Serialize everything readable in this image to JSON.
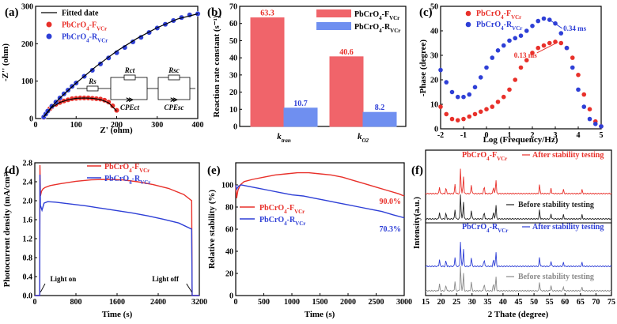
{
  "chart_data": [
    {
      "panel": "(a)",
      "type": "scatter",
      "xlabel": "Z' (ohm)",
      "ylabel": "-Z'' (ohm)",
      "xlim": [
        0,
        400
      ],
      "ylim": [
        0,
        300
      ],
      "xticks": [
        0,
        100,
        200,
        300,
        400
      ],
      "yticks": [
        0,
        100,
        200,
        300
      ],
      "legend": [
        {
          "label": "Fitted date",
          "color": "#000000",
          "marker": "line"
        },
        {
          "label": "PbCrO₄-Fᵥ꜀ᵣ",
          "sub_base": "PbCrO",
          "sub_num": "4",
          "sub_tail": "-F",
          "sub_vcr": "VCr",
          "color": "#e8302a",
          "marker": "circle"
        },
        {
          "label": "PbCrO₄-Rᵥ꜀ᵣ",
          "sub_base": "PbCrO",
          "sub_num": "4",
          "sub_tail": "-R",
          "sub_vcr": "VCr",
          "color": "#2e3fd6",
          "marker": "circle"
        }
      ],
      "circuit": {
        "rs": "Rs",
        "rct": "Rct",
        "rsc": "Rsc",
        "cpe1": "CPEct",
        "cpe2": "CPEsc"
      },
      "series": [
        {
          "name": "PbCrO4-FVCr",
          "color": "#e8302a",
          "x": [
            20,
            25,
            30,
            35,
            40,
            50,
            60,
            70,
            80,
            90,
            100,
            110,
            120,
            130,
            140,
            150,
            160,
            170,
            180,
            190,
            200
          ],
          "y": [
            3,
            12,
            20,
            26,
            31,
            38,
            43,
            47,
            50,
            53,
            54,
            55,
            55,
            55,
            54,
            53,
            52,
            49,
            44,
            34,
            22
          ]
        },
        {
          "name": "PbCrO4-RVCr",
          "color": "#2e3fd6",
          "x": [
            20,
            25,
            30,
            40,
            50,
            60,
            70,
            80,
            90,
            100,
            120,
            140,
            160,
            180,
            200,
            220,
            240,
            260,
            280,
            300,
            320,
            340,
            360,
            380,
            400
          ],
          "y": [
            4,
            12,
            20,
            33,
            44,
            55,
            66,
            76,
            86,
            95,
            113,
            129,
            146,
            162,
            176,
            190,
            205,
            217,
            230,
            242,
            252,
            262,
            270,
            277,
            280
          ]
        },
        {
          "name": "Fitted date",
          "color": "#000000",
          "x": [
            20,
            40,
            60,
            80,
            100,
            150,
            200,
            250,
            300,
            350,
            400
          ],
          "y": [
            5,
            32,
            55,
            75,
            95,
            140,
            180,
            214,
            243,
            266,
            280
          ]
        },
        {
          "name": "Fitted F",
          "color": "#000000",
          "x": [
            20,
            40,
            60,
            80,
            100,
            120,
            140,
            160,
            180,
            200
          ],
          "y": [
            4,
            30,
            43,
            50,
            54,
            55,
            54,
            51,
            42,
            20
          ]
        }
      ]
    },
    {
      "panel": "(b)",
      "type": "bar",
      "ylabel": "Reaction rate constant (s⁻¹)",
      "ylim": [
        0,
        70
      ],
      "yticks": [
        0,
        10,
        20,
        30,
        40,
        50,
        60,
        70
      ],
      "categories": [
        "k_tran",
        "k_O2"
      ],
      "cat_main": [
        "k",
        "k"
      ],
      "cat_sub": [
        "tran",
        "O2"
      ],
      "series": [
        {
          "name": "PbCrO4-FVCr",
          "color": "#f0646a",
          "values": [
            63.3,
            40.6
          ],
          "labels": [
            "63.3",
            "40.6"
          ],
          "label_color": "#e8302a"
        },
        {
          "name": "PbCrO4-RVCr",
          "color": "#6f8ff0",
          "values": [
            10.7,
            8.2
          ],
          "labels": [
            "10.7",
            "8.2"
          ],
          "label_color": "#2e3fd6"
        }
      ]
    },
    {
      "panel": "(c)",
      "type": "scatter",
      "xlabel": "Log (Frequency/Hz)",
      "ylabel": "-Phase (degree)",
      "xlim": [
        -2,
        5
      ],
      "ylim": [
        0,
        50
      ],
      "xticks": [
        -2,
        -1,
        0,
        1,
        2,
        3,
        4,
        5
      ],
      "yticks": [
        0,
        10,
        20,
        30,
        40,
        50
      ],
      "annotations": [
        {
          "text": "0.13 ms",
          "color": "#e8302a"
        },
        {
          "text": "0.34 ms",
          "color": "#2e3fd6"
        }
      ],
      "series": [
        {
          "name": "PbCrO4-FVCr",
          "color": "#e8302a",
          "x": [
            -2,
            -1.75,
            -1.5,
            -1.25,
            -1,
            -0.75,
            -0.5,
            -0.25,
            0,
            0.25,
            0.5,
            0.75,
            1,
            1.25,
            1.5,
            1.75,
            2,
            2.25,
            2.5,
            2.75,
            3,
            3.25,
            3.5,
            3.75,
            4,
            4.25,
            4.5,
            4.75,
            5
          ],
          "y": [
            9,
            6,
            4,
            3.5,
            4,
            5,
            6,
            7,
            8,
            9,
            11,
            13,
            16,
            20,
            25,
            28,
            31,
            33,
            34,
            35,
            35.5,
            35,
            33,
            29,
            22,
            14,
            8,
            3,
            1
          ]
        },
        {
          "name": "PbCrO4-RVCr",
          "color": "#2e3fd6",
          "x": [
            -2,
            -1.75,
            -1.5,
            -1.25,
            -1,
            -0.75,
            -0.5,
            -0.25,
            0,
            0.25,
            0.5,
            0.75,
            1,
            1.25,
            1.5,
            1.75,
            2,
            2.25,
            2.5,
            2.75,
            3,
            3.25,
            3.5,
            3.75,
            4,
            4.25,
            4.5,
            4.75,
            5
          ],
          "y": [
            24,
            19,
            15,
            13,
            13,
            14,
            17,
            21,
            25,
            29,
            32,
            34,
            36,
            37,
            38,
            40,
            42,
            44,
            45,
            44.5,
            43,
            39,
            33,
            25,
            16,
            9,
            4,
            2,
            1
          ]
        }
      ]
    },
    {
      "panel": "(d)",
      "type": "line",
      "xlabel": "Time (s)",
      "ylabel": "Photocurrent density (mA/cm²)",
      "xlim": [
        0,
        3200
      ],
      "ylim": [
        0,
        2.8
      ],
      "xticks": [
        0,
        800,
        1600,
        2400,
        3200
      ],
      "yticks": [
        0.0,
        0.4,
        0.8,
        1.2,
        1.6,
        2.0,
        2.4,
        2.8
      ],
      "tick_labels_y": [
        "0.0",
        "0.4",
        "0.8",
        "1.2",
        "1.6",
        "2.0",
        "2.4",
        "2.8"
      ],
      "annotations": [
        {
          "text": "Light on"
        },
        {
          "text": "Light off"
        }
      ],
      "series": [
        {
          "name": "PbCrO4-FVCr",
          "color": "#e8302a",
          "x": [
            0,
            95,
            100,
            110,
            130,
            160,
            200,
            300,
            500,
            800,
            1100,
            1400,
            1700,
            2000,
            2300,
            2600,
            2900,
            3050,
            3060,
            3070,
            3200
          ],
          "y": [
            0,
            0,
            2.75,
            2.1,
            2.2,
            2.25,
            2.28,
            2.32,
            2.36,
            2.41,
            2.44,
            2.45,
            2.44,
            2.4,
            2.34,
            2.26,
            2.13,
            2.0,
            0,
            0,
            0
          ]
        },
        {
          "name": "PbCrO4-RVCr",
          "color": "#2e3fd6",
          "x": [
            0,
            95,
            100,
            110,
            140,
            180,
            250,
            400,
            700,
            1000,
            1300,
            1600,
            1900,
            2200,
            2500,
            2800,
            3050,
            3060,
            3070,
            3200
          ],
          "y": [
            0,
            0,
            2.55,
            1.9,
            1.8,
            1.95,
            1.98,
            1.97,
            1.93,
            1.89,
            1.84,
            1.79,
            1.74,
            1.68,
            1.61,
            1.53,
            1.4,
            0,
            0,
            0
          ]
        }
      ]
    },
    {
      "panel": "(e)",
      "type": "line",
      "xlabel": "Time (s)",
      "ylabel": "Relative stability (%)",
      "xlim": [
        0,
        3000
      ],
      "ylim": [
        0,
        120
      ],
      "xticks": [
        0,
        500,
        1000,
        1500,
        2000,
        2500,
        3000
      ],
      "yticks": [
        0,
        20,
        40,
        60,
        80,
        100
      ],
      "end_labels": [
        {
          "text": "90.0%",
          "color": "#e8302a"
        },
        {
          "text": "70.3%",
          "color": "#2e3fd6"
        }
      ],
      "series": [
        {
          "name": "PbCrO4-FVCr",
          "color": "#e8302a",
          "x": [
            0,
            15,
            40,
            80,
            150,
            300,
            500,
            700,
            900,
            1100,
            1300,
            1500,
            1700,
            1900,
            2100,
            2300,
            2500,
            2700,
            2900,
            3000
          ],
          "y": [
            100,
            88,
            95,
            100,
            103,
            105,
            107,
            109,
            110,
            111,
            111,
            110,
            109,
            107,
            104,
            101,
            98,
            95,
            92,
            90
          ]
        },
        {
          "name": "PbCrO4-RVCr",
          "color": "#2e3fd6",
          "x": [
            0,
            15,
            50,
            100,
            200,
            400,
            600,
            800,
            1000,
            1200,
            1400,
            1600,
            1800,
            2000,
            2200,
            2400,
            2600,
            2800,
            3000
          ],
          "y": [
            100,
            96,
            99,
            100,
            99,
            97,
            95,
            93,
            91,
            90,
            88,
            86,
            84,
            82,
            80,
            78,
            76,
            73,
            70.3
          ]
        }
      ]
    },
    {
      "panel": "(f)",
      "type": "line",
      "xlabel": "2 Thate (degree)",
      "ylabel": "Intensity(a.u.)",
      "xlim": [
        15,
        75
      ],
      "xticks": [
        15,
        20,
        25,
        30,
        35,
        40,
        45,
        50,
        55,
        60,
        65,
        70,
        75
      ],
      "peaks": [
        19.5,
        21.6,
        24.5,
        26.3,
        27.2,
        29.8,
        33.9,
        36.9,
        37.7,
        51.8,
        55.5,
        59.5,
        65.5
      ],
      "peak_heights": [
        0.25,
        0.25,
        0.35,
        1.0,
        0.7,
        0.35,
        0.3,
        0.3,
        0.55,
        0.35,
        0.2,
        0.15,
        0.15
      ],
      "traces": [
        {
          "name": "PbCrO4-FVCr after",
          "color": "#e8302a",
          "label": "After stability testing"
        },
        {
          "name": "PbCrO4-FVCr before",
          "color": "#222222",
          "label": "Before stability testing"
        },
        {
          "name": "PbCrO4-RVCr after",
          "color": "#2e3fd6",
          "label": "After stability testing"
        },
        {
          "name": "PbCrO4-RVCr before",
          "color": "#8a8a8a",
          "label": "Before stability testing"
        }
      ]
    }
  ]
}
